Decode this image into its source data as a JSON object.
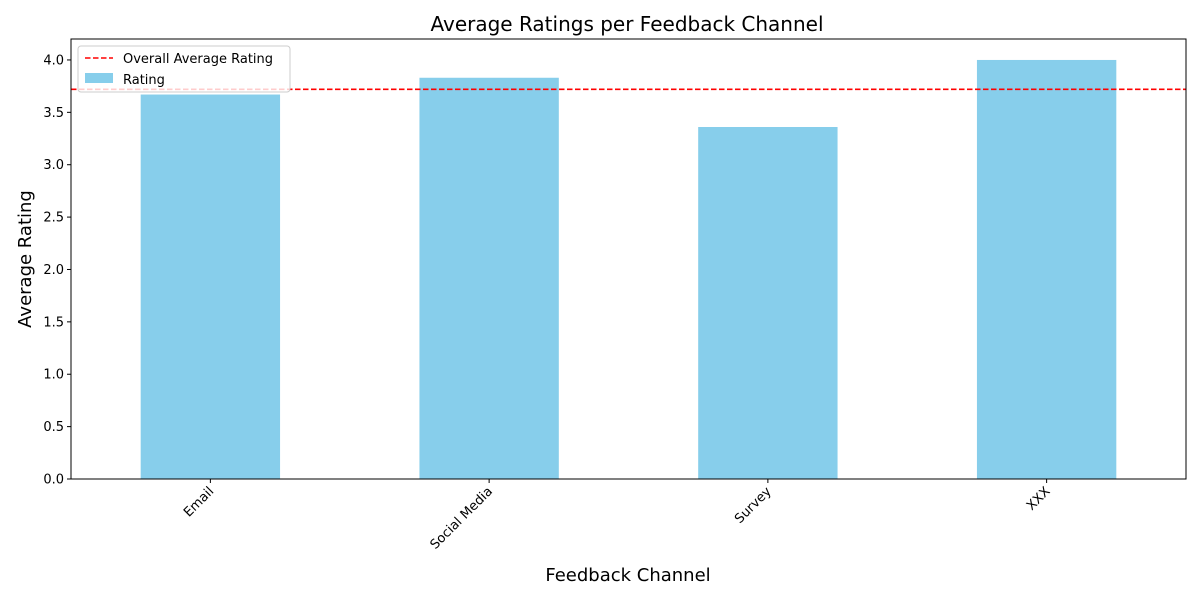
{
  "chart_data": {
    "type": "bar",
    "title": "Average Ratings per Feedback Channel",
    "xlabel": "Feedback Channel",
    "ylabel": "Average Rating",
    "categories": [
      "Email",
      "Social Media",
      "Survey",
      "XXX"
    ],
    "series": [
      {
        "name": "Rating",
        "values": [
          3.67,
          3.83,
          3.36,
          4.0
        ],
        "color": "#87CEEB"
      }
    ],
    "reference_line": {
      "name": "Overall Average Rating",
      "value": 3.72,
      "color": "#ff0000",
      "style": "dashed"
    },
    "ylim": [
      0,
      4.2
    ],
    "yticks": [
      0.0,
      0.5,
      1.0,
      1.5,
      2.0,
      2.5,
      3.0,
      3.5,
      4.0
    ],
    "ytick_labels": [
      "0.0",
      "0.5",
      "1.0",
      "1.5",
      "2.0",
      "2.5",
      "3.0",
      "3.5",
      "4.0"
    ],
    "grid": false,
    "legend_position": "top-left"
  }
}
